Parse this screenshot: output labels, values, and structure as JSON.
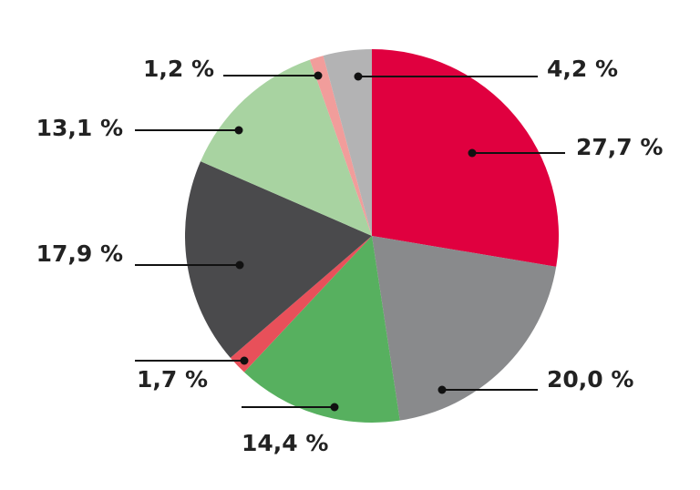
{
  "chart_data": {
    "type": "pie",
    "categories": [
      null,
      null,
      null,
      null,
      null,
      null,
      null,
      null
    ],
    "values": [
      27.7,
      20.0,
      14.4,
      1.7,
      17.9,
      13.1,
      1.2,
      4.2
    ],
    "value_labels": [
      "27,7 %",
      "20,0 %",
      "14,4 %",
      "1,7 %",
      "17,9 %",
      "13,1 %",
      "1,2 %",
      "4,2 %"
    ],
    "colors": [
      "#e0003f",
      "#898a8c",
      "#57b05f",
      "#e8505a",
      "#4a4a4c",
      "#a8d3a1",
      "#f19d9b",
      "#b3b3b4"
    ]
  }
}
